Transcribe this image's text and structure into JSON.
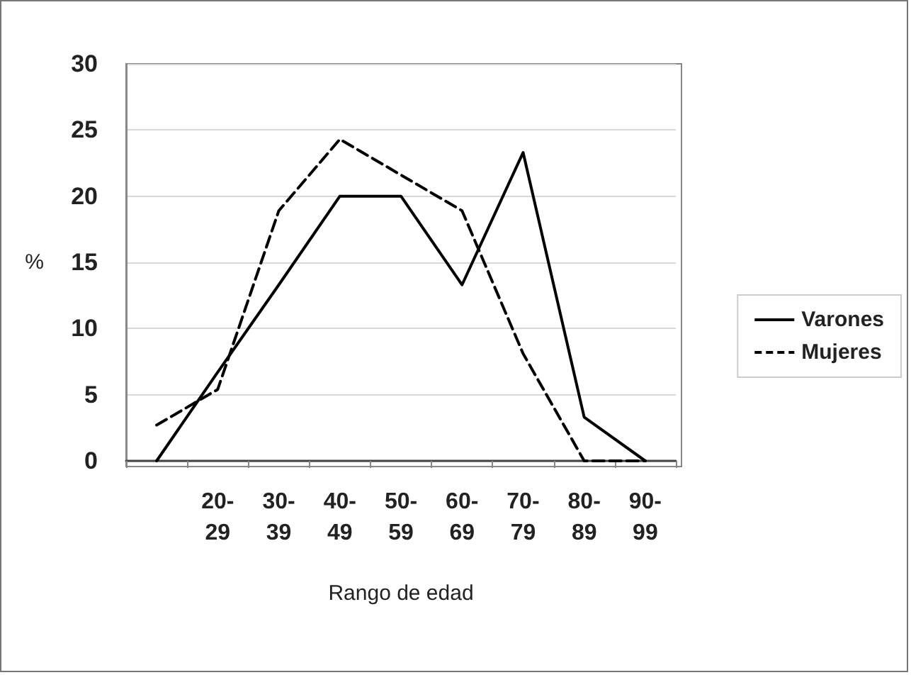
{
  "chart_data": {
    "type": "line",
    "xlabel": "Rango de edad",
    "ylabel": "%",
    "categories": [
      null,
      "20-29",
      "30-39",
      "40-49",
      "50-59",
      "60-69",
      "70-79",
      "80-89",
      "90-99"
    ],
    "series": [
      {
        "name": "Varones",
        "color": "#000000",
        "line_style": "solid",
        "values": [
          0,
          6.7,
          13.3,
          20,
          20,
          13.3,
          23.3,
          3.3,
          0
        ]
      },
      {
        "name": "Mujeres",
        "color": "#000000",
        "line_style": "dashed",
        "values": [
          2.7,
          5.4,
          18.9,
          24.3,
          21.6,
          18.9,
          8.1,
          0,
          0
        ]
      }
    ],
    "ylim": [
      0,
      30
    ],
    "yticks": [
      0,
      5,
      10,
      15,
      20,
      25,
      30
    ],
    "grid": "y",
    "legend": "right",
    "marker": "none"
  }
}
